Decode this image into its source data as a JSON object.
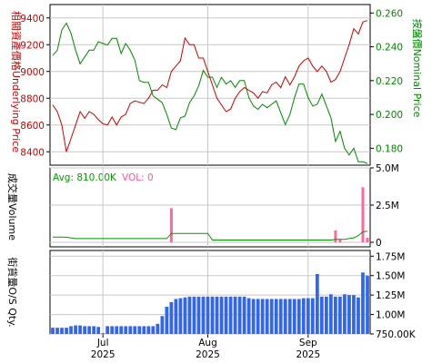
{
  "chart_data": [
    {
      "type": "line",
      "panel": "price",
      "left_axis_label": "相關資產價格Underlying Price",
      "right_axis_label": "按盤價Nominal Price",
      "left_color": "#cc0000",
      "right_color": "#008800",
      "left_ticks": [
        8400,
        8600,
        8800,
        9000,
        9200,
        9400
      ],
      "right_ticks": [
        "0.180",
        "0.200",
        "0.220",
        "0.240",
        "0.260"
      ],
      "left_ylim": [
        8300,
        9500
      ],
      "right_ylim": [
        0.17,
        0.265
      ],
      "x": [
        0,
        1,
        2,
        3,
        4,
        5,
        6,
        7,
        8,
        9,
        10,
        11,
        12,
        13,
        14,
        15,
        16,
        17,
        18,
        19,
        20,
        21,
        22,
        23,
        24,
        25,
        26,
        27,
        28,
        29,
        30,
        31,
        32,
        33,
        34,
        35,
        36,
        37,
        38,
        39,
        40,
        41,
        42,
        43,
        44,
        45,
        46,
        47,
        48,
        49,
        50,
        51,
        52,
        53,
        54,
        55,
        56,
        57,
        58,
        59,
        60,
        61,
        62,
        63,
        64,
        65,
        66,
        67,
        68,
        69
      ],
      "series": [
        {
          "name": "相關資產價格Underlying Price",
          "axis": "left",
          "values": [
            8750,
            8700,
            8600,
            8400,
            8500,
            8600,
            8700,
            8650,
            8700,
            8680,
            8640,
            8610,
            8600,
            8660,
            8600,
            8660,
            8680,
            8760,
            8780,
            8770,
            8760,
            8800,
            8860,
            8860,
            8900,
            8880,
            9000,
            9040,
            9080,
            9250,
            9200,
            9200,
            9100,
            9100,
            9000,
            8900,
            8800,
            8750,
            8700,
            8720,
            8800,
            8850,
            8880,
            8860,
            8840,
            8800,
            8850,
            8840,
            8900,
            8920,
            8880,
            8960,
            8900,
            8960,
            9040,
            9080,
            9100,
            9040,
            9000,
            9040,
            9000,
            8920,
            8940,
            9000,
            9100,
            9200,
            9320,
            9280,
            9370,
            9380
          ]
        },
        {
          "name": "按盤價Nominal Price",
          "axis": "right",
          "values": [
            0.235,
            0.238,
            0.25,
            0.254,
            0.248,
            0.238,
            0.23,
            0.234,
            0.238,
            0.238,
            0.243,
            0.242,
            0.241,
            0.245,
            0.245,
            0.236,
            0.242,
            0.238,
            0.232,
            0.22,
            0.219,
            0.219,
            0.211,
            0.209,
            0.207,
            0.2,
            0.192,
            0.191,
            0.198,
            0.199,
            0.207,
            0.211,
            0.217,
            0.226,
            0.222,
            0.222,
            0.216,
            0.222,
            0.218,
            0.22,
            0.216,
            0.22,
            0.22,
            0.21,
            0.205,
            0.203,
            0.206,
            0.204,
            0.206,
            0.208,
            0.201,
            0.194,
            0.2,
            0.21,
            0.218,
            0.218,
            0.21,
            0.205,
            0.206,
            0.212,
            0.205,
            0.198,
            0.184,
            0.19,
            0.18,
            0.176,
            0.18,
            0.172,
            0.172,
            0.171
          ]
        }
      ]
    },
    {
      "type": "bar",
      "panel": "volume",
      "ylabel": "成交量Volume",
      "legend_avg": "Avg: 810.00K",
      "legend_vol": "VOL: 0",
      "legend_avg_color": "#009900",
      "legend_vol_color": "#ff5599",
      "right_ticks": [
        "0",
        "2.5M",
        "5.0M"
      ],
      "ylim": [
        0,
        5000000
      ],
      "bar_color": "#ff6699",
      "avg_line_color": "#009900",
      "bar_values": {
        "26": 2300000,
        "62": 800000,
        "63": 180000,
        "68": 3700000,
        "69": 300000
      },
      "avg_values": [
        350000,
        350000,
        350000,
        340000,
        300000,
        250000,
        250000,
        250000,
        250000,
        250000,
        250000,
        250000,
        250000,
        250000,
        250000,
        250000,
        250000,
        250000,
        250000,
        250000,
        250000,
        250000,
        250000,
        250000,
        250000,
        250000,
        600000,
        600000,
        600000,
        600000,
        600000,
        600000,
        600000,
        600000,
        600000,
        150000,
        150000,
        150000,
        150000,
        150000,
        150000,
        150000,
        150000,
        150000,
        150000,
        150000,
        150000,
        150000,
        150000,
        150000,
        150000,
        150000,
        150000,
        150000,
        150000,
        150000,
        150000,
        150000,
        150000,
        150000,
        150000,
        150000,
        200000,
        200000,
        200000,
        250000,
        300000,
        450000,
        700000,
        750000
      ]
    },
    {
      "type": "bar",
      "panel": "os_qty",
      "ylabel": "街貨量O/S Qty.",
      "right_ticks": [
        "750.00K",
        "1.00M",
        "1.25M",
        "1.50M",
        "1.75M"
      ],
      "ylim": [
        750000,
        1800000
      ],
      "bar_color": "#3366ee",
      "values": [
        830000,
        830000,
        830000,
        830000,
        850000,
        860000,
        860000,
        850000,
        850000,
        850000,
        840000,
        760000,
        850000,
        850000,
        850000,
        850000,
        850000,
        850000,
        850000,
        850000,
        850000,
        850000,
        850000,
        880000,
        980000,
        1100000,
        1160000,
        1200000,
        1210000,
        1220000,
        1230000,
        1230000,
        1230000,
        1230000,
        1230000,
        1230000,
        1230000,
        1230000,
        1230000,
        1230000,
        1230000,
        1230000,
        1230000,
        1210000,
        1200000,
        1200000,
        1200000,
        1200000,
        1200000,
        1200000,
        1200000,
        1200000,
        1200000,
        1200000,
        1200000,
        1210000,
        1210000,
        1210000,
        1520000,
        1230000,
        1230000,
        1260000,
        1230000,
        1230000,
        1260000,
        1250000,
        1250000,
        1220000,
        1540000,
        1500000
      ]
    }
  ],
  "x_axis": {
    "ticks": [
      {
        "index": 11,
        "month": "Jul",
        "year": "2025"
      },
      {
        "index": 34,
        "month": "Aug",
        "year": "2025"
      },
      {
        "index": 56,
        "month": "Sep",
        "year": "2025"
      }
    ]
  }
}
